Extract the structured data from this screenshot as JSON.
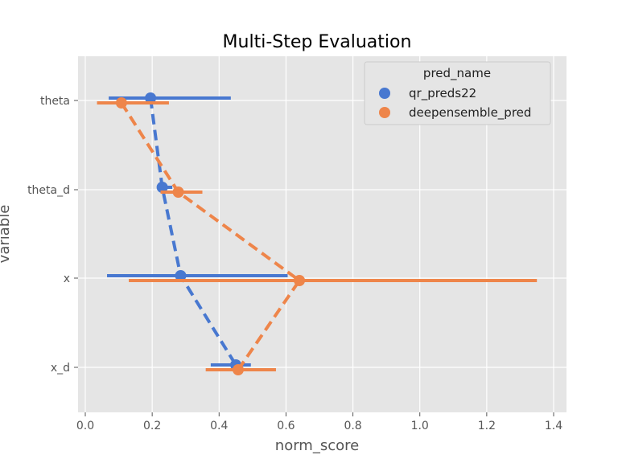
{
  "chart_data": {
    "type": "scatter",
    "title": "Multi-Step Evaluation",
    "xlabel": "norm_score",
    "ylabel": "variable",
    "xlim": [
      -0.02,
      1.42
    ],
    "x_ticks": [
      "0.0",
      "0.2",
      "0.4",
      "0.6",
      "0.8",
      "1.0",
      "1.2",
      "1.4"
    ],
    "x_tick_values": [
      0.0,
      0.2,
      0.4,
      0.6,
      0.8,
      1.0,
      1.2,
      1.4
    ],
    "categories": [
      "theta",
      "theta_d",
      "x",
      "x_d"
    ],
    "grid": true,
    "legend": {
      "title": "pred_name",
      "placement": "top-right"
    },
    "series": [
      {
        "name": "qr_preds22",
        "color": "#4878d0",
        "values": [
          0.195,
          0.23,
          0.285,
          0.45
        ],
        "ci_low": [
          0.07,
          0.215,
          0.065,
          0.375
        ],
        "ci_high": [
          0.435,
          0.26,
          0.605,
          0.495
        ]
      },
      {
        "name": "deepensemble_pred",
        "color": "#ee854a",
        "values": [
          0.108,
          0.278,
          0.64,
          0.457
        ],
        "ci_low": [
          0.035,
          0.225,
          0.13,
          0.36
        ],
        "ci_high": [
          0.25,
          0.35,
          1.35,
          0.57
        ]
      }
    ]
  }
}
